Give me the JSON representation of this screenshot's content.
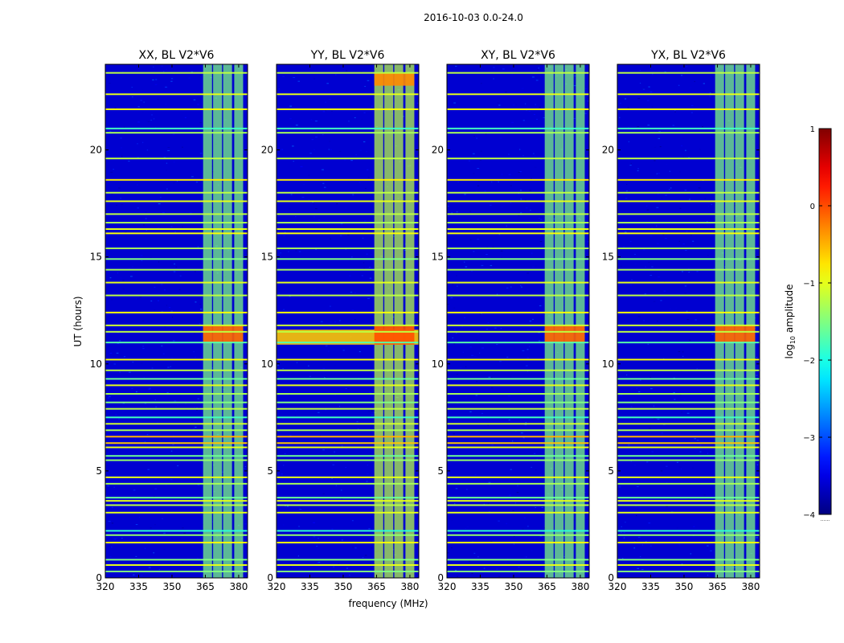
{
  "chart_data": {
    "type": "heatmap",
    "title": "2016-10-03 0.0-24.0",
    "xlabel": "frequency (MHz)",
    "ylabel": "UT (hours)",
    "xticks": [
      320,
      335,
      350,
      365,
      380
    ],
    "yticks": [
      0,
      5,
      10,
      15,
      20
    ],
    "xlim": [
      320,
      384
    ],
    "ylim": [
      0,
      24
    ],
    "panels": [
      {
        "title": "XX, BL V2*V6",
        "key": "XX"
      },
      {
        "title": "YY, BL V2*V6",
        "key": "YY"
      },
      {
        "title": "XY, BL V2*V6",
        "key": "XY"
      },
      {
        "title": "YX, BL V2*V6",
        "key": "YX"
      }
    ],
    "colorbar": {
      "label": "log10 amplitude",
      "label_main": "log",
      "label_sub": "10",
      "label_rest": " amplitude",
      "range": [
        -4,
        1
      ],
      "ticks": [
        "1",
        "0",
        "−1",
        "−2",
        "−3",
        "−4"
      ],
      "tick_values": [
        1,
        0,
        -1,
        -2,
        -3,
        -4
      ],
      "colormap": "jet"
    },
    "rfi_bands_mhz": [
      [
        364,
        368
      ],
      [
        368.5,
        372.5
      ],
      [
        373,
        377
      ],
      [
        378,
        382
      ]
    ],
    "rfi_band_levels": {
      "XX": -1.5,
      "YY": -1.2,
      "XY": -1.5,
      "YX": -1.5
    },
    "background_level": -3.6,
    "horizontal_lines_ut": [
      {
        "ut": 0.3,
        "level": -1.5
      },
      {
        "ut": 0.6,
        "level": -1.0
      },
      {
        "ut": 0.85,
        "level": -1.5
      },
      {
        "ut": 1.65,
        "level": -0.9
      },
      {
        "ut": 2.0,
        "level": -1.4
      },
      {
        "ut": 2.2,
        "level": -1.9
      },
      {
        "ut": 3.05,
        "level": -1.0
      },
      {
        "ut": 3.4,
        "level": -1.2
      },
      {
        "ut": 3.6,
        "level": -1.0
      },
      {
        "ut": 3.75,
        "level": -1.6
      },
      {
        "ut": 4.4,
        "level": -1.3
      },
      {
        "ut": 4.7,
        "level": -1.0
      },
      {
        "ut": 5.5,
        "level": -1.4
      },
      {
        "ut": 5.7,
        "level": -1.6
      },
      {
        "ut": 6.1,
        "level": -1.0
      },
      {
        "ut": 6.3,
        "level": -0.6
      },
      {
        "ut": 6.6,
        "level": -0.5
      },
      {
        "ut": 6.9,
        "level": -1.3
      },
      {
        "ut": 7.2,
        "level": -1.1
      },
      {
        "ut": 7.5,
        "level": -1.8
      },
      {
        "ut": 7.9,
        "level": -1.2
      },
      {
        "ut": 8.2,
        "level": -1.5
      },
      {
        "ut": 8.6,
        "level": -1.3
      },
      {
        "ut": 9.0,
        "level": -1.0
      },
      {
        "ut": 9.3,
        "level": -1.6
      },
      {
        "ut": 9.7,
        "level": -1.2
      },
      {
        "ut": 10.2,
        "level": -0.9
      },
      {
        "ut": 11.0,
        "level": -1.7
      },
      {
        "ut": 11.5,
        "level": -1.2
      },
      {
        "ut": 11.8,
        "level": -1.1
      },
      {
        "ut": 12.4,
        "level": -0.9
      },
      {
        "ut": 13.2,
        "level": -1.2
      },
      {
        "ut": 13.8,
        "level": -1.0
      },
      {
        "ut": 14.4,
        "level": -1.3
      },
      {
        "ut": 14.9,
        "level": -1.5
      },
      {
        "ut": 15.4,
        "level": -1.3
      },
      {
        "ut": 16.1,
        "level": -0.9
      },
      {
        "ut": 16.3,
        "level": -1.0
      },
      {
        "ut": 16.6,
        "level": -1.3
      },
      {
        "ut": 17.0,
        "level": -1.2
      },
      {
        "ut": 17.6,
        "level": -1.0
      },
      {
        "ut": 18.0,
        "level": -1.2
      },
      {
        "ut": 18.6,
        "level": -0.8
      },
      {
        "ut": 19.6,
        "level": -1.2
      },
      {
        "ut": 20.8,
        "level": -1.3
      },
      {
        "ut": 21.0,
        "level": -1.8
      },
      {
        "ut": 21.9,
        "level": -0.9
      },
      {
        "ut": 22.6,
        "level": -1.0
      },
      {
        "ut": 23.6,
        "level": -1.2
      }
    ],
    "bright_features": [
      {
        "panel": "XX",
        "ut_range": [
          11.0,
          11.8
        ],
        "mhz_range": [
          364,
          382
        ],
        "level": -0.1
      },
      {
        "panel": "YY",
        "ut_range": [
          10.9,
          11.6
        ],
        "mhz_range": [
          320,
          384
        ],
        "level": -0.6
      },
      {
        "panel": "YY",
        "ut_range": [
          10.9,
          11.8
        ],
        "mhz_range": [
          364,
          382
        ],
        "level": 0.0
      },
      {
        "panel": "YY",
        "ut_range": [
          23.0,
          23.6
        ],
        "mhz_range": [
          364,
          382
        ],
        "level": -0.3
      },
      {
        "panel": "XY",
        "ut_range": [
          11.0,
          11.8
        ],
        "mhz_range": [
          364,
          382
        ],
        "level": -0.1
      },
      {
        "panel": "YX",
        "ut_range": [
          11.0,
          11.8
        ],
        "mhz_range": [
          364,
          382
        ],
        "level": -0.1
      }
    ],
    "extra_dots": "......"
  }
}
